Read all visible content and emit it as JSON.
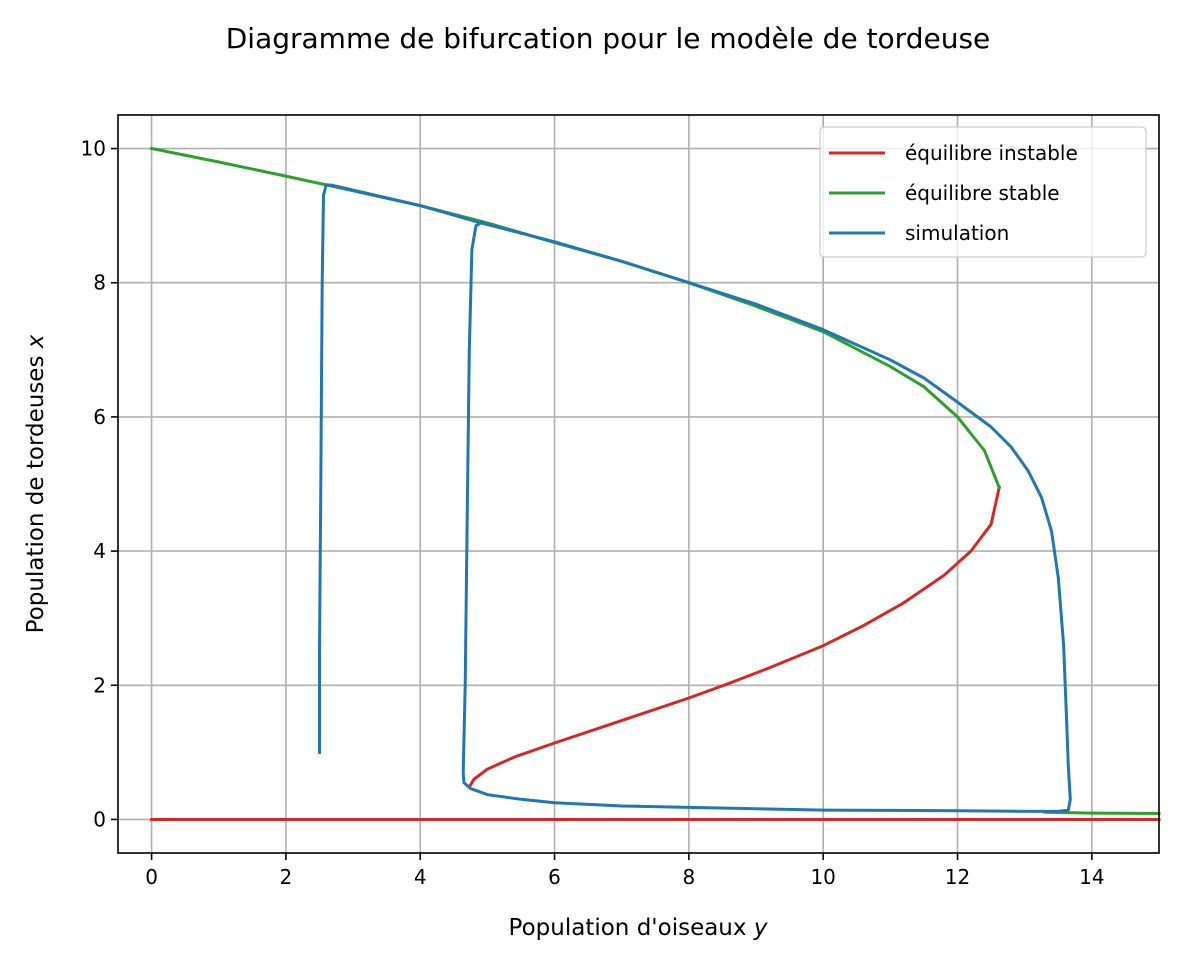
{
  "chart_data": {
    "type": "line",
    "title": "Diagramme de bifurcation pour le modèle de tordeuse",
    "xlabel_text": "Population d'oiseaux ",
    "xlabel_var": "y",
    "ylabel_text": "Population de tordeuses ",
    "ylabel_var": "x",
    "xlim": [
      -0.5,
      15
    ],
    "ylim": [
      -0.5,
      10.5
    ],
    "x_ticks": [
      0,
      2,
      4,
      6,
      8,
      10,
      12,
      14
    ],
    "y_ticks": [
      0,
      2,
      4,
      6,
      8,
      10
    ],
    "grid": true,
    "legend_position": "top-right",
    "series": [
      {
        "name": "équilibre instable",
        "color": "#d62728",
        "segments": [
          [
            [
              0,
              0
            ],
            [
              15,
              0
            ]
          ],
          [
            [
              4.74,
              0.5
            ],
            [
              4.8,
              0.6
            ],
            [
              5.0,
              0.75
            ],
            [
              5.4,
              0.93
            ],
            [
              6.0,
              1.14
            ],
            [
              6.6,
              1.34
            ],
            [
              7.2,
              1.54
            ],
            [
              8.0,
              1.81
            ],
            [
              8.6,
              2.03
            ],
            [
              9.2,
              2.26
            ],
            [
              10.0,
              2.59
            ],
            [
              10.6,
              2.89
            ],
            [
              11.2,
              3.23
            ],
            [
              11.8,
              3.64
            ],
            [
              12.2,
              4.0
            ],
            [
              12.5,
              4.4
            ],
            [
              12.62,
              4.95
            ]
          ]
        ]
      },
      {
        "name": "équilibre stable",
        "color": "#2ca02c",
        "segments": [
          [
            [
              0,
              10
            ],
            [
              1,
              9.8
            ],
            [
              2,
              9.59
            ],
            [
              3,
              9.37
            ],
            [
              4,
              9.15
            ],
            [
              5,
              8.89
            ],
            [
              6,
              8.6
            ],
            [
              7,
              8.32
            ],
            [
              8,
              8.0
            ],
            [
              9,
              7.65
            ],
            [
              10,
              7.27
            ],
            [
              11,
              6.75
            ],
            [
              11.5,
              6.45
            ],
            [
              12,
              6.0
            ],
            [
              12.4,
              5.5
            ],
            [
              12.62,
              4.95
            ]
          ],
          [
            [
              13.3,
              0.11
            ],
            [
              14,
              0.095
            ],
            [
              15,
              0.09
            ]
          ]
        ]
      },
      {
        "name": "simulation",
        "color": "#1f77b4",
        "segments": [
          [
            [
              2.5,
              1.0
            ],
            [
              2.5,
              2.5
            ],
            [
              2.52,
              5.0
            ],
            [
              2.54,
              8.0
            ],
            [
              2.56,
              9.3
            ],
            [
              2.6,
              9.46
            ],
            [
              2.7,
              9.45
            ],
            [
              3.0,
              9.38
            ],
            [
              4.0,
              9.15
            ],
            [
              4.87,
              8.9
            ],
            [
              6.0,
              8.61
            ],
            [
              7.0,
              8.32
            ],
            [
              8.0,
              8.0
            ],
            [
              9.0,
              7.68
            ],
            [
              10.0,
              7.3
            ],
            [
              11.0,
              6.85
            ],
            [
              11.5,
              6.58
            ],
            [
              12.0,
              6.22
            ],
            [
              12.5,
              5.85
            ],
            [
              12.8,
              5.55
            ],
            [
              13.05,
              5.2
            ],
            [
              13.25,
              4.8
            ],
            [
              13.4,
              4.3
            ],
            [
              13.5,
              3.6
            ],
            [
              13.58,
              2.6
            ],
            [
              13.62,
              1.6
            ],
            [
              13.65,
              0.8
            ],
            [
              13.68,
              0.3
            ],
            [
              13.65,
              0.14
            ],
            [
              13.5,
              0.12
            ],
            [
              13.2,
              0.12
            ],
            [
              12.0,
              0.13
            ],
            [
              10.0,
              0.14
            ],
            [
              9.0,
              0.16
            ],
            [
              8.0,
              0.18
            ],
            [
              7.0,
              0.2
            ],
            [
              6.0,
              0.25
            ],
            [
              5.5,
              0.3
            ],
            [
              5.0,
              0.37
            ],
            [
              4.75,
              0.46
            ],
            [
              4.65,
              0.55
            ],
            [
              4.64,
              0.7
            ],
            [
              4.67,
              2.0
            ],
            [
              4.7,
              4.5
            ],
            [
              4.73,
              7.0
            ],
            [
              4.77,
              8.5
            ],
            [
              4.83,
              8.85
            ],
            [
              4.92,
              8.9
            ]
          ]
        ]
      }
    ]
  }
}
